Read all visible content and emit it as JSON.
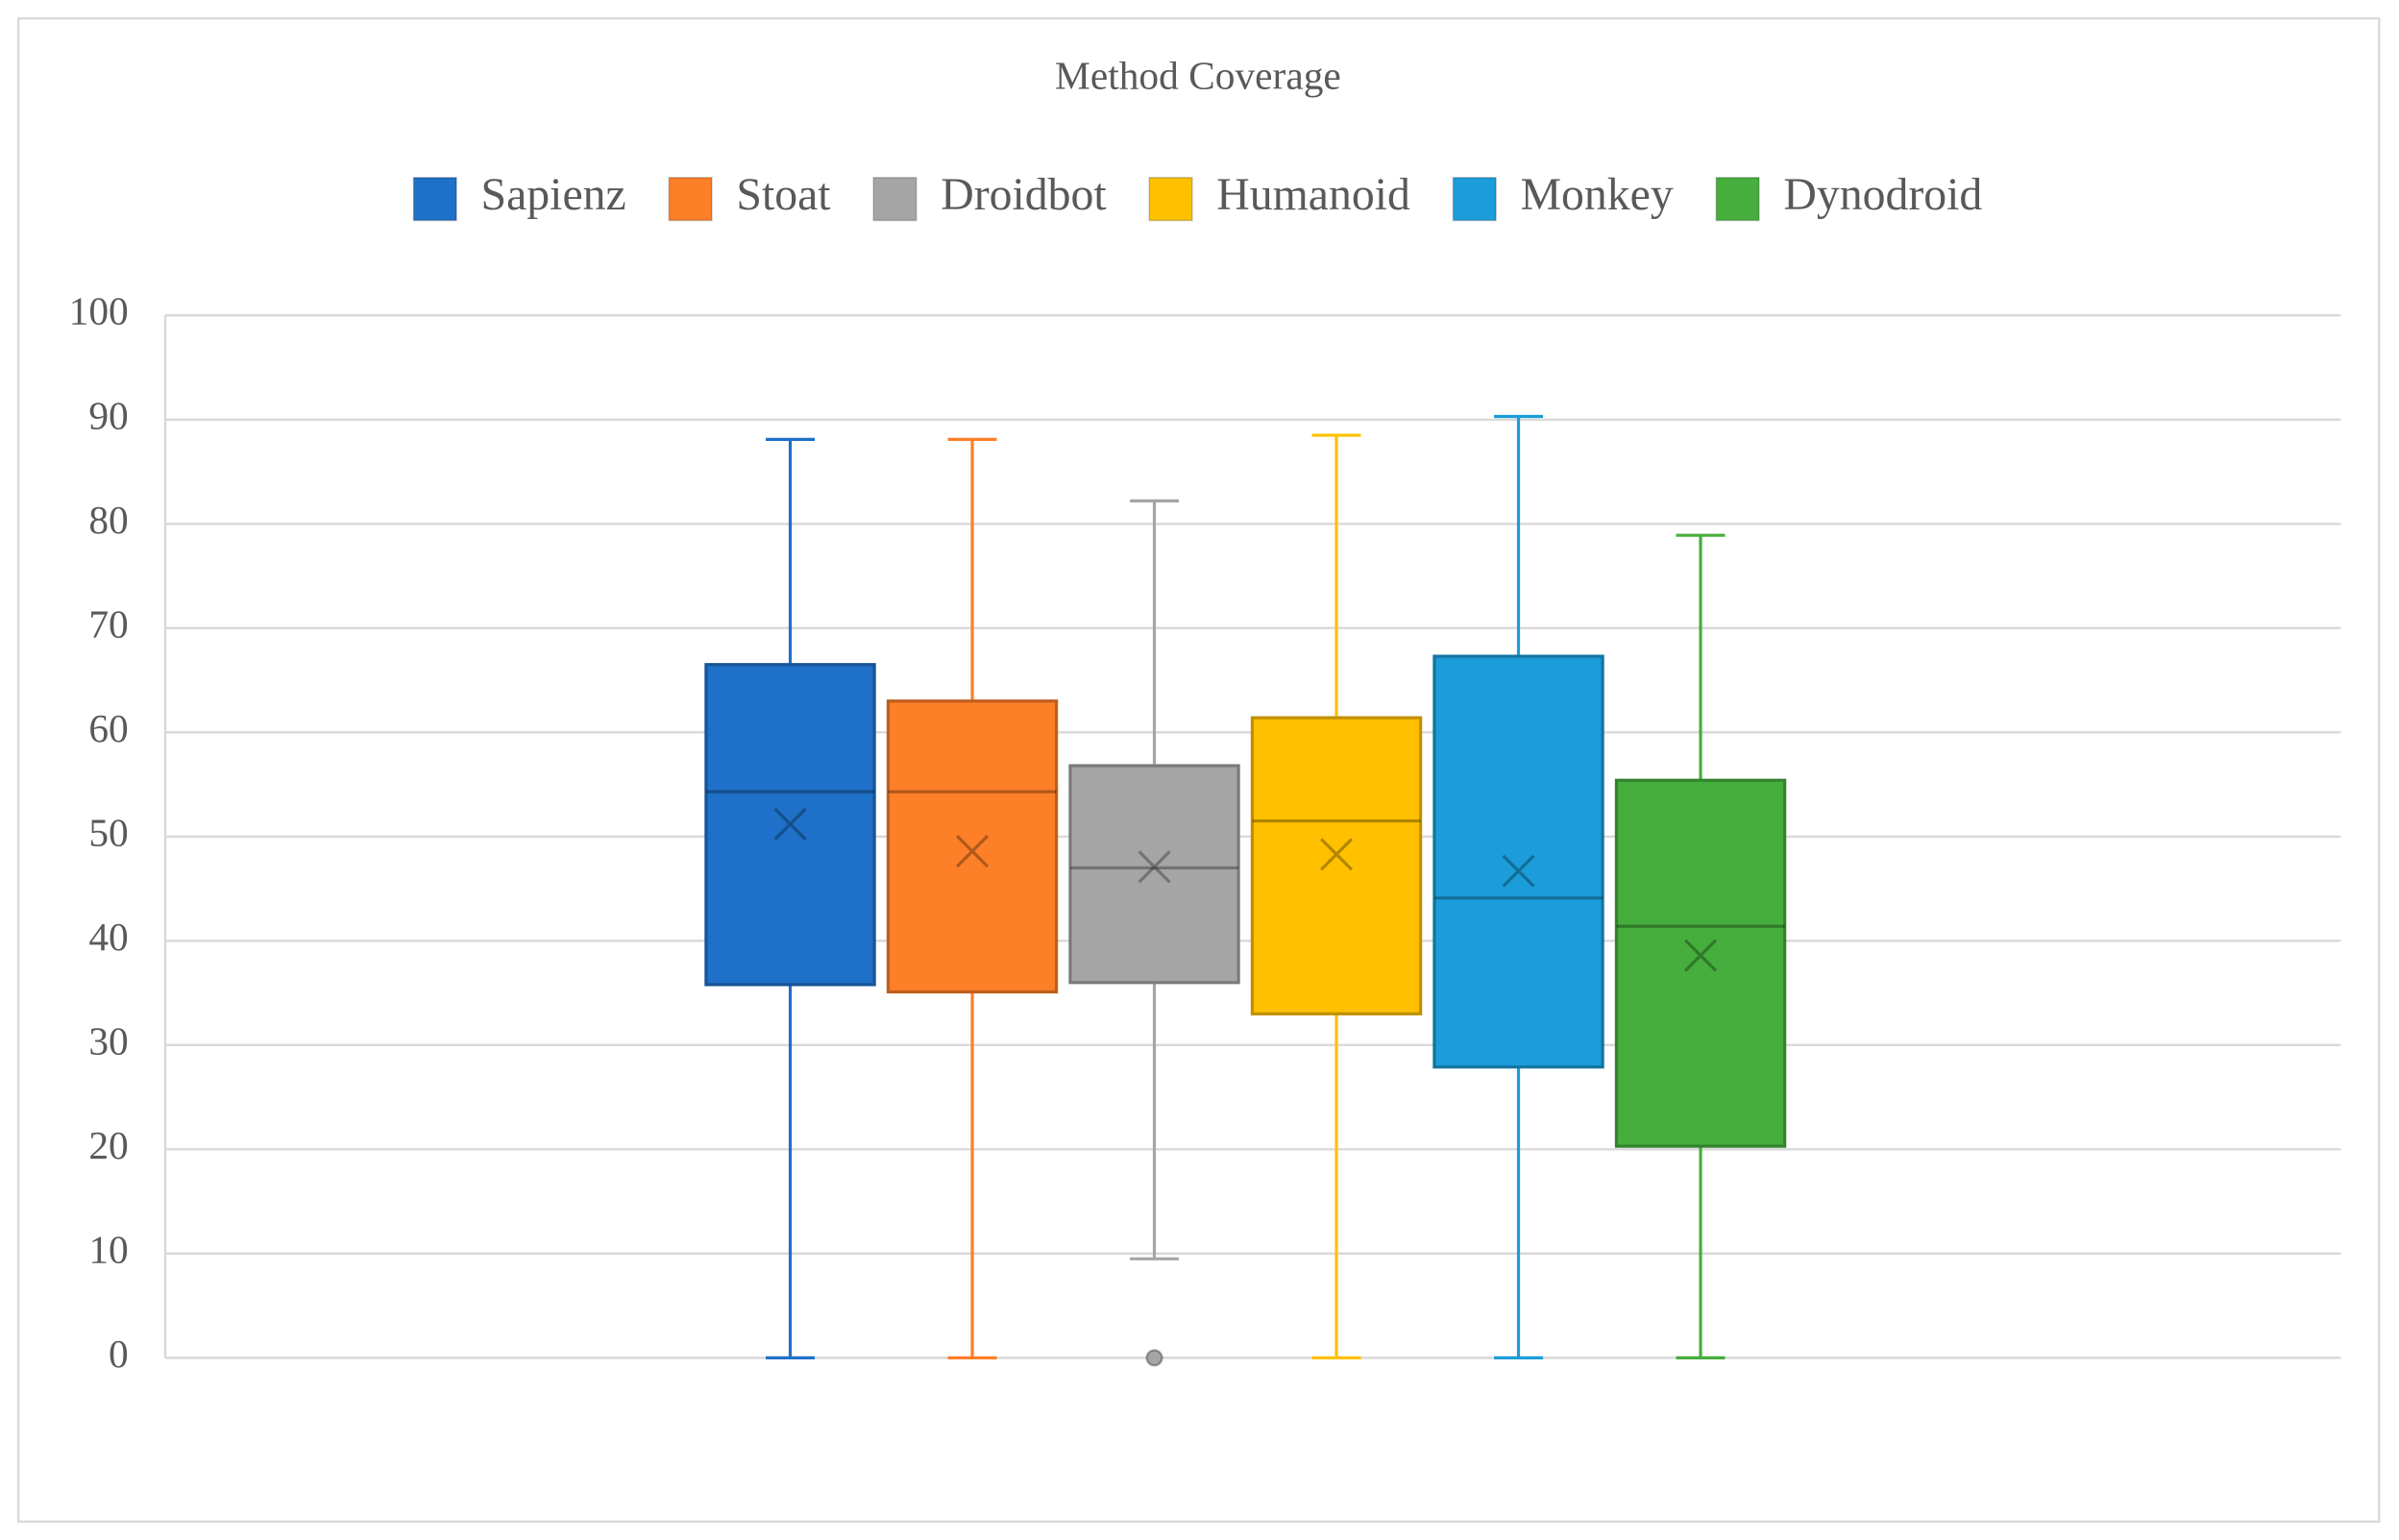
{
  "chart_data": {
    "type": "box",
    "title": "Method Coverage",
    "legend": "top",
    "grid": true,
    "ylim": [
      0,
      100
    ],
    "yticks": [
      0,
      10,
      20,
      30,
      40,
      50,
      60,
      70,
      80,
      90,
      100
    ],
    "series": [
      {
        "name": "Sapienz",
        "color": "#1f70c8",
        "min": 0,
        "q1": 35.8,
        "median": 54.3,
        "q3": 66.5,
        "max": 88.1,
        "mean": 51.2,
        "outliers": []
      },
      {
        "name": "Stoat",
        "color": "#fd7f28",
        "min": 0,
        "q1": 35.1,
        "median": 54.3,
        "q3": 63,
        "max": 88.1,
        "mean": 48.6,
        "outliers": []
      },
      {
        "name": "Droidbot",
        "color": "#a5a5a5",
        "min": 9.5,
        "q1": 36,
        "median": 47,
        "q3": 56.8,
        "max": 82.2,
        "mean": 47.1,
        "outliers": [
          0
        ]
      },
      {
        "name": "Humanoid",
        "color": "#ffc000",
        "min": 0,
        "q1": 33,
        "median": 51.5,
        "q3": 61.4,
        "max": 88.5,
        "mean": 48.3,
        "outliers": []
      },
      {
        "name": "Monkey",
        "color": "#1b9dd9",
        "min": 0,
        "q1": 27.9,
        "median": 44.1,
        "q3": 67.3,
        "max": 90.3,
        "mean": 46.7,
        "outliers": []
      },
      {
        "name": "Dynodroid",
        "color": "#45ae3c",
        "min": 0,
        "q1": 20.3,
        "median": 41.4,
        "q3": 55.4,
        "max": 78.9,
        "mean": 38.6,
        "outliers": []
      }
    ]
  }
}
